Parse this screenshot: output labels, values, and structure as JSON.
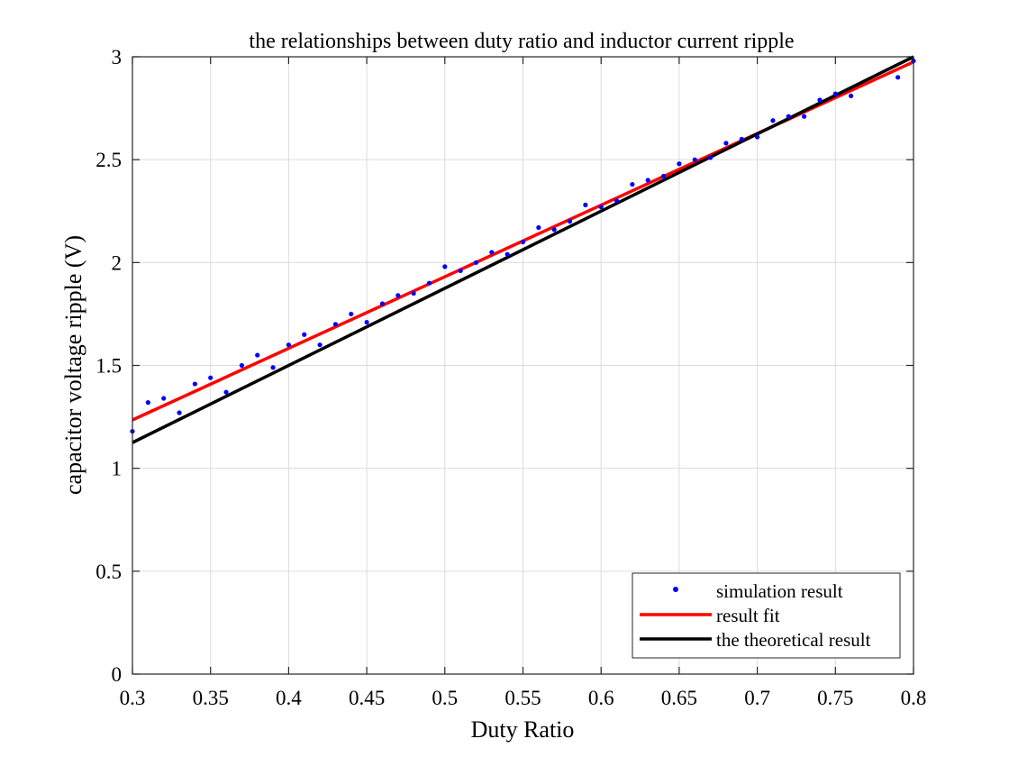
{
  "chart_data": {
    "type": "scatter",
    "title": "the relationships between duty ratio and inductor current ripple",
    "xlabel": "Duty Ratio",
    "ylabel": "capacitor voltage ripple (V)",
    "xlim": [
      0.3,
      0.8
    ],
    "ylim": [
      0,
      3
    ],
    "xticks": [
      0.3,
      0.35,
      0.4,
      0.45,
      0.5,
      0.55,
      0.6,
      0.65,
      0.7,
      0.75,
      0.8
    ],
    "xtick_labels": [
      "0.3",
      "0.35",
      "0.4",
      "0.45",
      "0.5",
      "0.55",
      "0.6",
      "0.65",
      "0.7",
      "0.75",
      "0.8"
    ],
    "yticks": [
      0,
      0.5,
      1,
      1.5,
      2,
      2.5,
      3
    ],
    "ytick_labels": [
      "0",
      "0.5",
      "1",
      "1.5",
      "2",
      "2.5",
      "3"
    ],
    "grid": true,
    "legend_position": "bottom-right",
    "series": [
      {
        "name": "simulation result",
        "kind": "points",
        "color": "#0000ff",
        "x": [
          0.3,
          0.31,
          0.32,
          0.33,
          0.34,
          0.35,
          0.36,
          0.37,
          0.38,
          0.39,
          0.4,
          0.41,
          0.42,
          0.43,
          0.44,
          0.45,
          0.46,
          0.47,
          0.48,
          0.49,
          0.5,
          0.51,
          0.52,
          0.53,
          0.54,
          0.55,
          0.56,
          0.57,
          0.58,
          0.59,
          0.6,
          0.61,
          0.62,
          0.63,
          0.64,
          0.65,
          0.66,
          0.67,
          0.68,
          0.69,
          0.7,
          0.71,
          0.72,
          0.73,
          0.74,
          0.75,
          0.76,
          0.79,
          0.8
        ],
        "y": [
          1.18,
          1.32,
          1.34,
          1.27,
          1.41,
          1.44,
          1.37,
          1.5,
          1.55,
          1.49,
          1.6,
          1.65,
          1.6,
          1.7,
          1.75,
          1.71,
          1.8,
          1.84,
          1.85,
          1.9,
          1.98,
          1.96,
          2.0,
          2.05,
          2.04,
          2.1,
          2.17,
          2.16,
          2.2,
          2.28,
          2.27,
          2.3,
          2.38,
          2.4,
          2.42,
          2.48,
          2.5,
          2.51,
          2.58,
          2.6,
          2.61,
          2.69,
          2.71,
          2.71,
          2.79,
          2.82,
          2.81,
          2.9,
          2.98
        ]
      },
      {
        "name": "result fit",
        "kind": "line",
        "color": "#ff0000",
        "x": [
          0.3,
          0.8
        ],
        "y": [
          1.235,
          2.975
        ]
      },
      {
        "name": "the theoretical result",
        "kind": "line",
        "color": "#000000",
        "x": [
          0.3,
          0.8
        ],
        "y": [
          1.125,
          3.0
        ]
      }
    ]
  }
}
